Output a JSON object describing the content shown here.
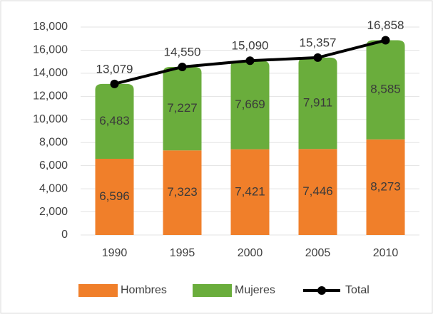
{
  "chart_data": {
    "type": "bar",
    "stacked": true,
    "categories": [
      "1990",
      "1995",
      "2000",
      "2005",
      "2010"
    ],
    "series": [
      {
        "name": "Hombres",
        "color": "#f07f2a",
        "values": [
          6596,
          7323,
          7421,
          7446,
          8273
        ],
        "value_labels": [
          "6,596",
          "7,323",
          "7,421",
          "7,446",
          "8,273"
        ]
      },
      {
        "name": "Mujeres",
        "color": "#6aad3c",
        "values": [
          6483,
          7227,
          7669,
          7911,
          8585
        ],
        "value_labels": [
          "6,483",
          "7,227",
          "7,669",
          "7,911",
          "8,585"
        ]
      },
      {
        "name": "Total",
        "type": "line",
        "color": "#000000",
        "values": [
          13079,
          14550,
          15090,
          15357,
          16858
        ],
        "value_labels": [
          "13,079",
          "14,550",
          "15,090",
          "15,357",
          "16,858"
        ]
      }
    ],
    "ylim": [
      0,
      18000
    ],
    "yticks": [
      0,
      {
        "value": 2000,
        "label": "2,000"
      },
      {
        "value": 4000,
        "label": "4,000"
      },
      {
        "value": 6000,
        "label": "6,000"
      },
      {
        "value": 8000,
        "label": "8,000"
      },
      {
        "value": 10000,
        "label": "10,000"
      },
      {
        "value": 12000,
        "label": "12,000"
      },
      {
        "value": 14000,
        "label": "14,000"
      },
      {
        "value": 16000,
        "label": "16,000"
      },
      {
        "value": 18000,
        "label": "18,000"
      }
    ],
    "grid": true
  }
}
